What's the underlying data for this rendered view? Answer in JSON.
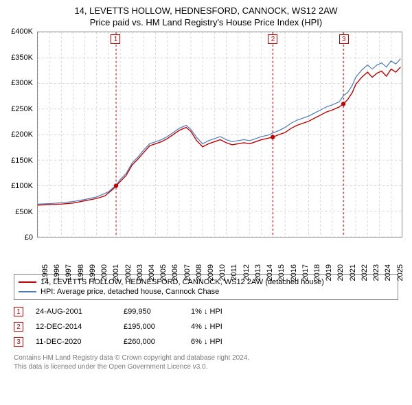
{
  "title_line1": "14, LEVETTS HOLLOW, HEDNESFORD, CANNOCK, WS12 2AW",
  "title_line2": "Price paid vs. HM Land Registry's House Price Index (HPI)",
  "chart": {
    "type": "line",
    "background_color": "#ffffff",
    "border_color": "#888888",
    "grid_color": "#d6d6d6",
    "grid_dash": "3,3",
    "xlim": [
      1995,
      2025.9
    ],
    "ylim": [
      0,
      400000
    ],
    "ytick_step": 50000,
    "yticks_labels": [
      "£0",
      "£50K",
      "£100K",
      "£150K",
      "£200K",
      "£250K",
      "£300K",
      "£350K",
      "£400K"
    ],
    "xticks": [
      1995,
      1996,
      1997,
      1998,
      1999,
      2000,
      2001,
      2002,
      2003,
      2004,
      2005,
      2006,
      2007,
      2008,
      2009,
      2010,
      2011,
      2012,
      2013,
      2014,
      2015,
      2016,
      2017,
      2018,
      2019,
      2020,
      2021,
      2022,
      2023,
      2024,
      2025
    ],
    "label_fontsize": 11,
    "title_fontsize": 13,
    "series": [
      {
        "name": "property",
        "color": "#c00000",
        "width": 1.4,
        "data": [
          [
            1995,
            62000
          ],
          [
            1996,
            63000
          ],
          [
            1997,
            64000
          ],
          [
            1998,
            66000
          ],
          [
            1999,
            70500
          ],
          [
            2000,
            75000
          ],
          [
            2000.7,
            80000
          ],
          [
            2001.4,
            93500
          ],
          [
            2001.65,
            99950
          ],
          [
            2002,
            108000
          ],
          [
            2002.5,
            120000
          ],
          [
            2003,
            140000
          ],
          [
            2003.5,
            152000
          ],
          [
            2004,
            165000
          ],
          [
            2004.5,
            178000
          ],
          [
            2005,
            182000
          ],
          [
            2005.5,
            186000
          ],
          [
            2006,
            192000
          ],
          [
            2006.5,
            200000
          ],
          [
            2007,
            208000
          ],
          [
            2007.6,
            214000
          ],
          [
            2008,
            206000
          ],
          [
            2008.5,
            188000
          ],
          [
            2009,
            176000
          ],
          [
            2009.5,
            182000
          ],
          [
            2010,
            186000
          ],
          [
            2010.5,
            190000
          ],
          [
            2011,
            184000
          ],
          [
            2011.5,
            180000
          ],
          [
            2012,
            182000
          ],
          [
            2012.5,
            184000
          ],
          [
            2013,
            182000
          ],
          [
            2013.5,
            186000
          ],
          [
            2014,
            190000
          ],
          [
            2014.6,
            193000
          ],
          [
            2014.95,
            195000
          ],
          [
            2015.5,
            200000
          ],
          [
            2016,
            204000
          ],
          [
            2016.5,
            212000
          ],
          [
            2017,
            218000
          ],
          [
            2017.5,
            222000
          ],
          [
            2018,
            226000
          ],
          [
            2018.5,
            232000
          ],
          [
            2019,
            238000
          ],
          [
            2019.5,
            244000
          ],
          [
            2020,
            248000
          ],
          [
            2020.6,
            254000
          ],
          [
            2020.95,
            260000
          ],
          [
            2021.3,
            268000
          ],
          [
            2021.7,
            282000
          ],
          [
            2022,
            298000
          ],
          [
            2022.5,
            312000
          ],
          [
            2023,
            322000
          ],
          [
            2023.4,
            312000
          ],
          [
            2023.8,
            320000
          ],
          [
            2024.2,
            324000
          ],
          [
            2024.6,
            314000
          ],
          [
            2025,
            328000
          ],
          [
            2025.4,
            322000
          ],
          [
            2025.8,
            332000
          ]
        ]
      },
      {
        "name": "hpi",
        "color": "#4a7ab8",
        "width": 1.2,
        "data": [
          [
            1995,
            64000
          ],
          [
            1996,
            65000
          ],
          [
            1997,
            66500
          ],
          [
            1998,
            69000
          ],
          [
            1999,
            73000
          ],
          [
            2000,
            78000
          ],
          [
            2001,
            88000
          ],
          [
            2001.65,
            101000
          ],
          [
            2002,
            112000
          ],
          [
            2002.5,
            124000
          ],
          [
            2003,
            144000
          ],
          [
            2003.5,
            156000
          ],
          [
            2004,
            170000
          ],
          [
            2004.5,
            182000
          ],
          [
            2005,
            186000
          ],
          [
            2005.5,
            190000
          ],
          [
            2006,
            196000
          ],
          [
            2006.5,
            204000
          ],
          [
            2007,
            212000
          ],
          [
            2007.6,
            218000
          ],
          [
            2008,
            210000
          ],
          [
            2008.5,
            194000
          ],
          [
            2009,
            182000
          ],
          [
            2009.5,
            188000
          ],
          [
            2010,
            192000
          ],
          [
            2010.5,
            196000
          ],
          [
            2011,
            190000
          ],
          [
            2011.5,
            186000
          ],
          [
            2012,
            188000
          ],
          [
            2012.5,
            190000
          ],
          [
            2013,
            188000
          ],
          [
            2013.5,
            192000
          ],
          [
            2014,
            196000
          ],
          [
            2014.6,
            199000
          ],
          [
            2014.95,
            203000
          ],
          [
            2015.5,
            208000
          ],
          [
            2016,
            214000
          ],
          [
            2016.5,
            222000
          ],
          [
            2017,
            228000
          ],
          [
            2017.5,
            232000
          ],
          [
            2018,
            236000
          ],
          [
            2018.5,
            242000
          ],
          [
            2019,
            248000
          ],
          [
            2019.5,
            254000
          ],
          [
            2020,
            258000
          ],
          [
            2020.6,
            264000
          ],
          [
            2020.95,
            276000
          ],
          [
            2021.3,
            282000
          ],
          [
            2021.7,
            296000
          ],
          [
            2022,
            312000
          ],
          [
            2022.5,
            326000
          ],
          [
            2023,
            336000
          ],
          [
            2023.4,
            328000
          ],
          [
            2023.8,
            336000
          ],
          [
            2024.2,
            340000
          ],
          [
            2024.6,
            332000
          ],
          [
            2025,
            344000
          ],
          [
            2025.4,
            338000
          ],
          [
            2025.8,
            348000
          ]
        ]
      }
    ],
    "sale_points": [
      {
        "x": 2001.65,
        "y": 99950
      },
      {
        "x": 2014.95,
        "y": 195000
      },
      {
        "x": 2020.95,
        "y": 260000
      }
    ],
    "sale_point_color": "#c00000",
    "sale_point_radius": 3.2
  },
  "markers": [
    {
      "num": "1",
      "x": 2001.65
    },
    {
      "num": "2",
      "x": 2014.95
    },
    {
      "num": "3",
      "x": 2020.95
    }
  ],
  "marker_line_color": "#c00000",
  "marker_line_dash": "3,3",
  "legend": {
    "items": [
      {
        "color": "#c00000",
        "label": "14, LEVETTS HOLLOW, HEDNESFORD, CANNOCK, WS12 2AW (detached house)"
      },
      {
        "color": "#4a7ab8",
        "label": "HPI: Average price, detached house, Cannock Chase"
      }
    ]
  },
  "events": [
    {
      "num": "1",
      "date": "24-AUG-2001",
      "price": "£99,950",
      "delta": "1% ↓ HPI"
    },
    {
      "num": "2",
      "date": "12-DEC-2014",
      "price": "£195,000",
      "delta": "4% ↓ HPI"
    },
    {
      "num": "3",
      "date": "11-DEC-2020",
      "price": "£260,000",
      "delta": "6% ↓ HPI"
    }
  ],
  "footnote_line1": "Contains HM Land Registry data © Crown copyright and database right 2024.",
  "footnote_line2": "This data is licensed under the Open Government Licence v3.0."
}
